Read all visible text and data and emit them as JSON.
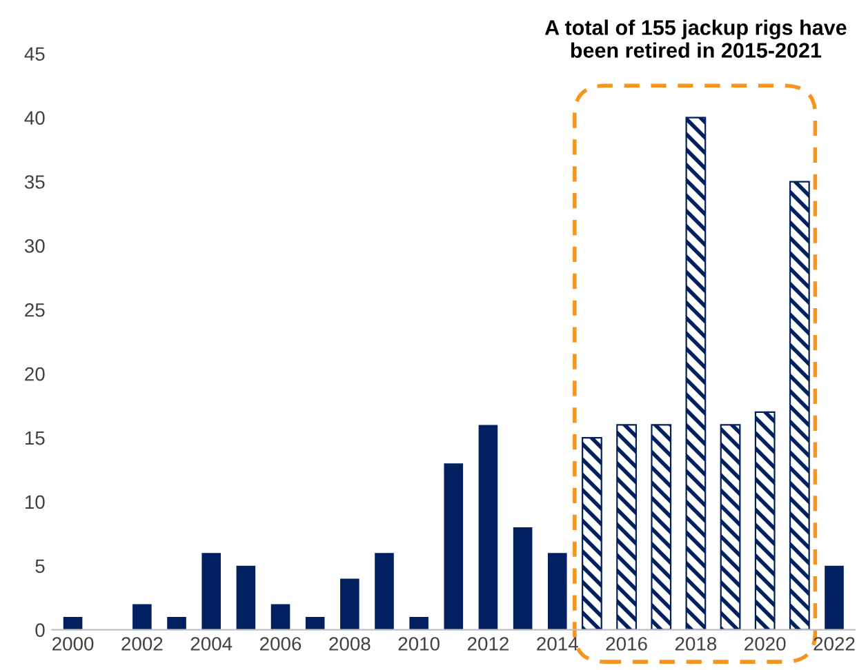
{
  "chart_data": {
    "type": "bar",
    "categories": [
      "2000",
      null,
      "2002",
      null,
      "2004",
      null,
      "2006",
      null,
      "2008",
      null,
      "2010",
      null,
      "2012",
      null,
      "2014",
      null,
      "2016",
      null,
      "2018",
      null,
      "2020",
      null,
      "2022"
    ],
    "series": [
      {
        "color": "#002060",
        "values": [
          1,
          0,
          2,
          1,
          6,
          5,
          2,
          1,
          4,
          6,
          1,
          13,
          16,
          8,
          6,
          null,
          null,
          null,
          null,
          null,
          null,
          null,
          5
        ]
      },
      {
        "color": "#002060",
        "values": [
          null,
          null,
          null,
          null,
          null,
          null,
          null,
          null,
          null,
          null,
          null,
          null,
          null,
          null,
          null,
          15,
          16,
          16,
          40,
          16,
          17,
          35,
          null
        ]
      }
    ],
    "annotations": [
      "A total of 155 jackup rigs have been retired in 2015-2021"
    ],
    "ylim": [
      0,
      45
    ],
    "yticks": [
      0,
      5,
      10,
      15,
      20,
      25,
      30,
      35,
      40,
      45
    ],
    "grid": false,
    "legend": false
  }
}
